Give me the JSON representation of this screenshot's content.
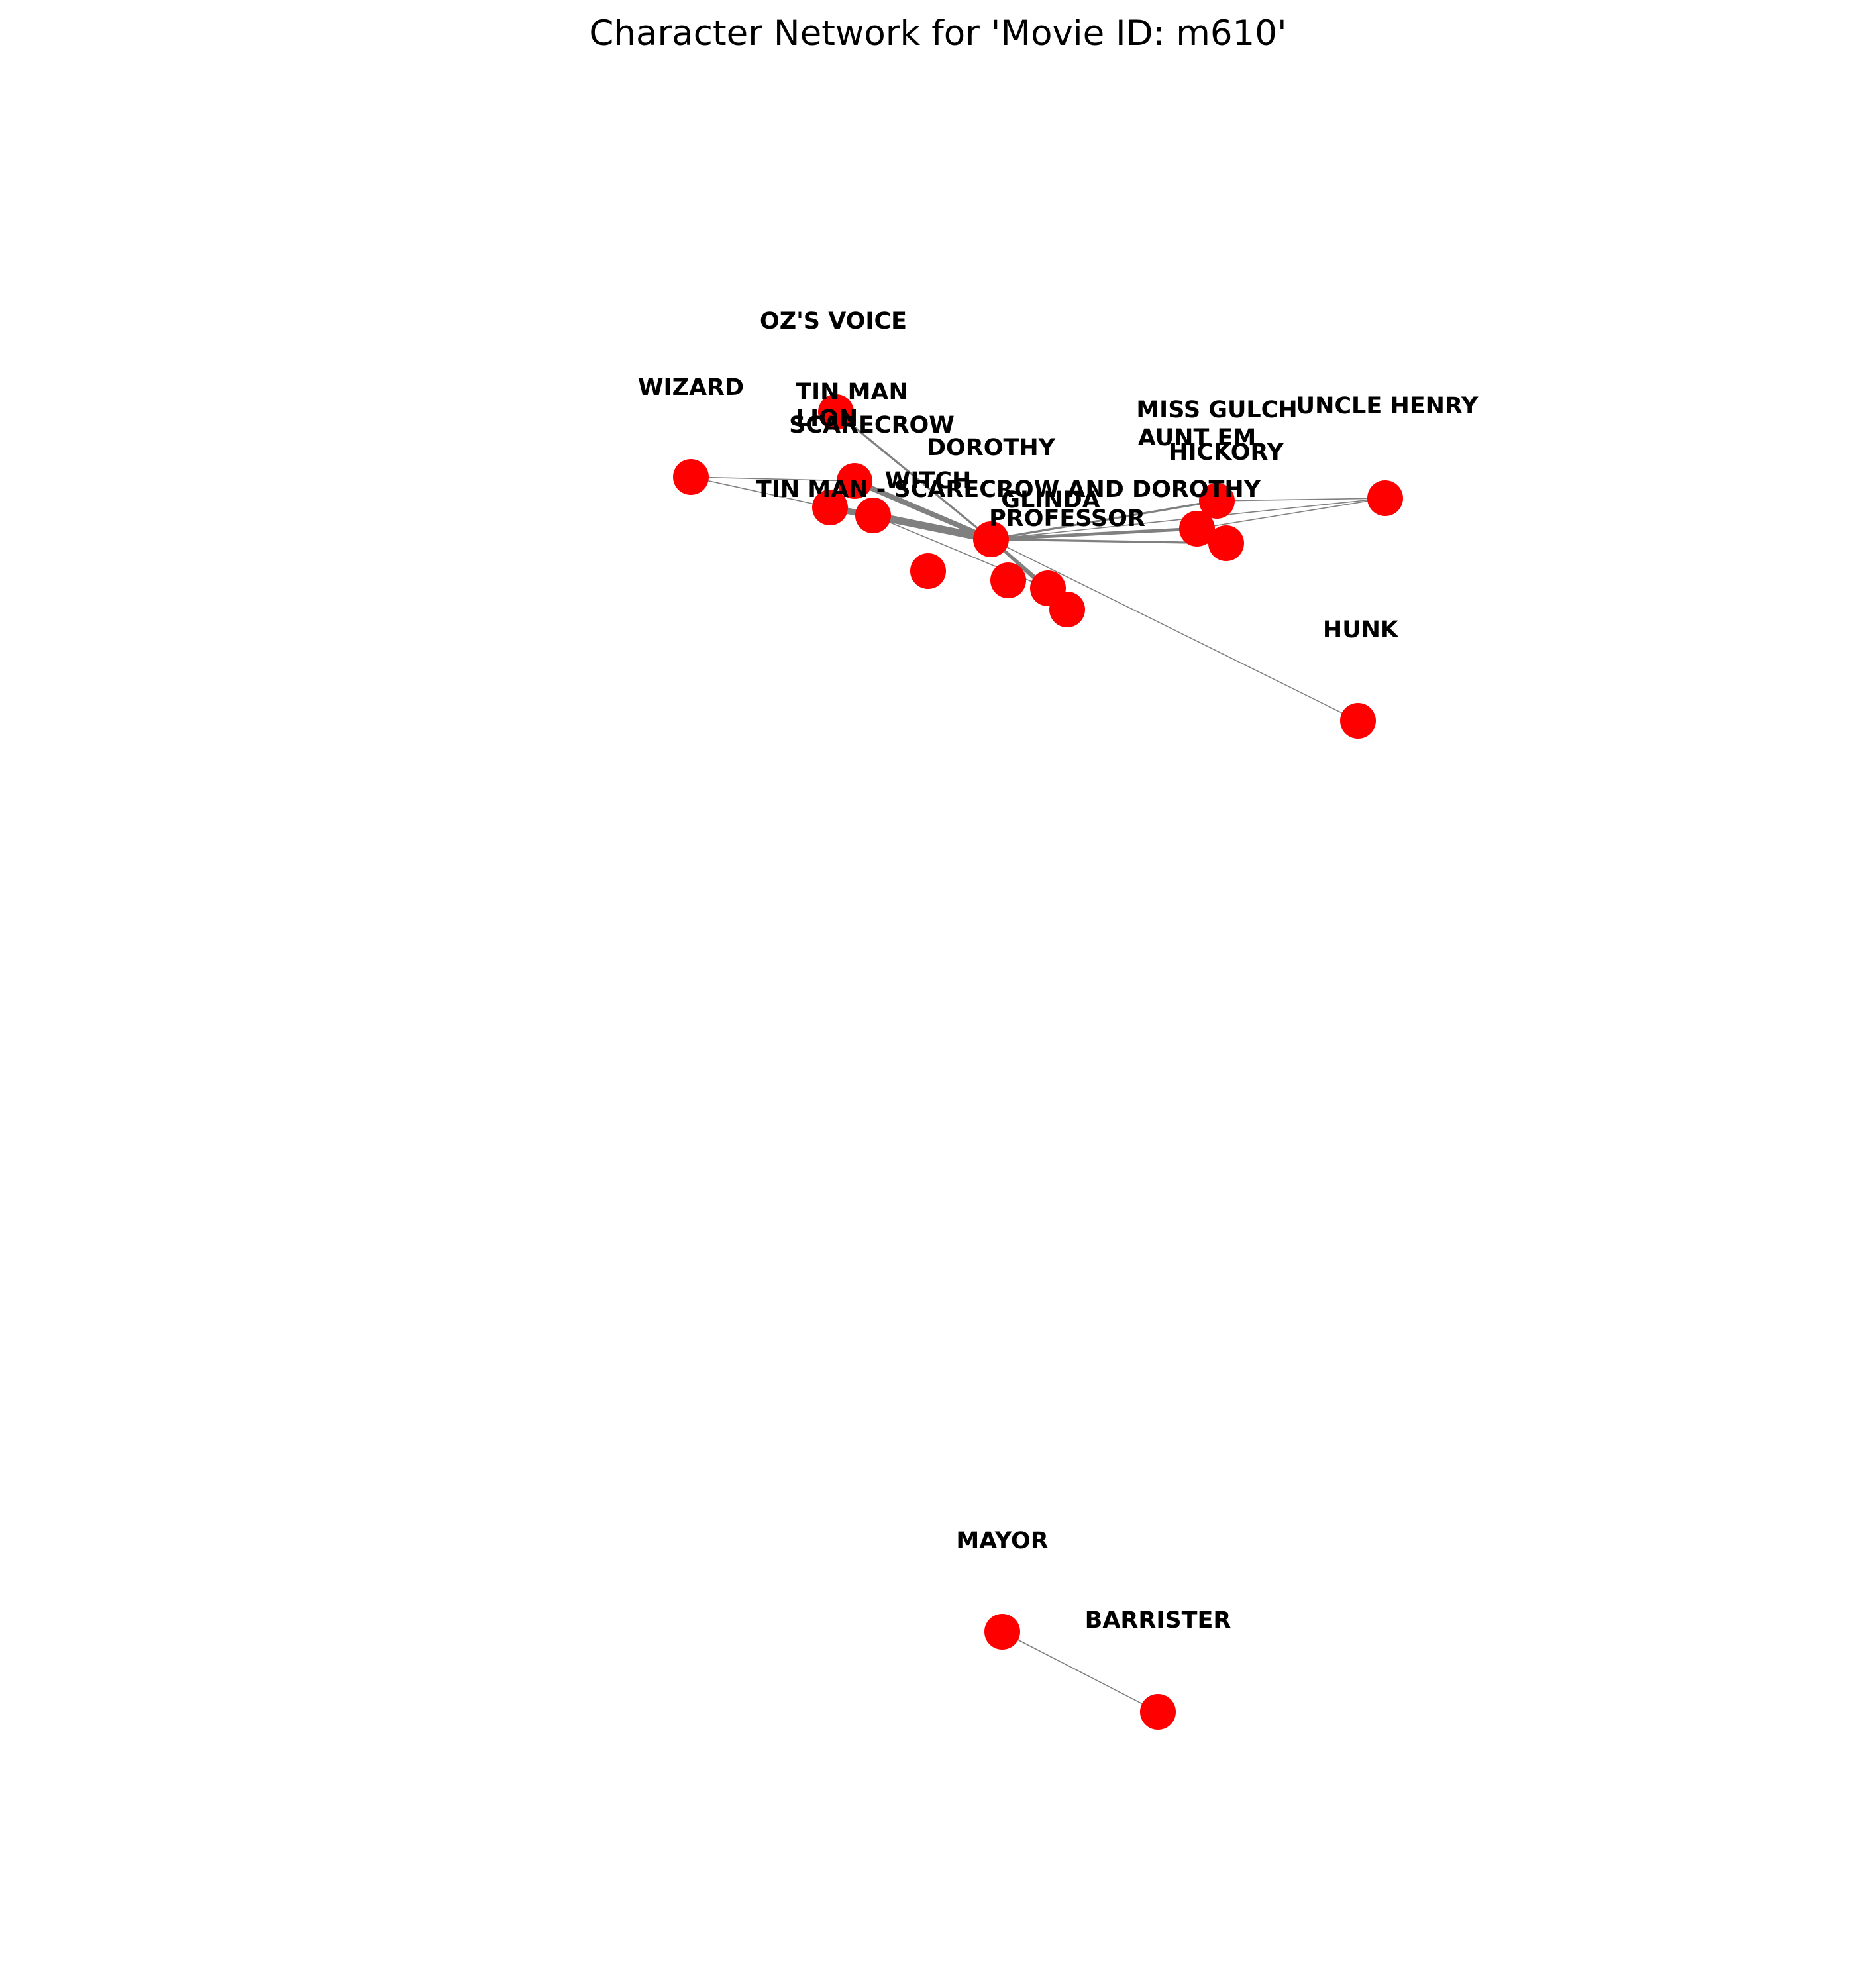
{
  "title": "Character Network for 'Movie ID: m610'",
  "colors": {
    "node": "#ff0000",
    "edge": "#808080",
    "label": "#000000"
  },
  "nodes": [
    {
      "id": "lion",
      "label": "LION"
    },
    {
      "id": "tin_man",
      "label": "TIN MAN"
    },
    {
      "id": "wizard",
      "label": "WIZARD"
    },
    {
      "id": "oz_voice",
      "label": "OZ'S VOICE"
    },
    {
      "id": "scarecrow",
      "label": "SCARECROW"
    },
    {
      "id": "tin_man_scarecrow_dorothy",
      "label": "TIN MAN - SCARECROW AND DOROTHY"
    },
    {
      "id": "witch",
      "label": "WITCH"
    },
    {
      "id": "dorothy",
      "label": "DOROTHY"
    },
    {
      "id": "glinda",
      "label": "GLINDA"
    },
    {
      "id": "professor",
      "label": "PROFESSOR"
    },
    {
      "id": "miss_gulch",
      "label": "MISS GULCH"
    },
    {
      "id": "aunt_em",
      "label": "AUNT EM"
    },
    {
      "id": "hickory",
      "label": "HICKORY"
    },
    {
      "id": "uncle_henry",
      "label": "UNCLE HENRY"
    },
    {
      "id": "hunk",
      "label": "HUNK"
    },
    {
      "id": "mayor",
      "label": "MAYOR"
    },
    {
      "id": "barrister",
      "label": "BARRISTER"
    }
  ],
  "edges": [
    {
      "source": "dorothy",
      "target": "scarecrow",
      "weight": 6
    },
    {
      "source": "dorothy",
      "target": "tin_man",
      "weight": 5
    },
    {
      "source": "dorothy",
      "target": "witch",
      "weight": 7
    },
    {
      "source": "dorothy",
      "target": "lion",
      "weight": 2
    },
    {
      "source": "dorothy",
      "target": "oz_voice",
      "weight": 1
    },
    {
      "source": "dorothy",
      "target": "glinda",
      "weight": 3
    },
    {
      "source": "dorothy",
      "target": "professor",
      "weight": 2
    },
    {
      "source": "dorothy",
      "target": "tin_man_scarecrow_dorothy",
      "weight": 2
    },
    {
      "source": "dorothy",
      "target": "aunt_em",
      "weight": 3
    },
    {
      "source": "dorothy",
      "target": "miss_gulch",
      "weight": 2
    },
    {
      "source": "dorothy",
      "target": "hickory",
      "weight": 2
    },
    {
      "source": "dorothy",
      "target": "uncle_henry",
      "weight": 1
    },
    {
      "source": "dorothy",
      "target": "hunk",
      "weight": 1
    },
    {
      "source": "wizard",
      "target": "tin_man",
      "weight": 1
    },
    {
      "source": "wizard",
      "target": "scarecrow",
      "weight": 1
    },
    {
      "source": "oz_voice",
      "target": "lion",
      "weight": 1
    },
    {
      "source": "tin_man_scarecrow_dorothy",
      "target": "glinda",
      "weight": 1
    },
    {
      "source": "miss_gulch",
      "target": "uncle_henry",
      "weight": 1
    },
    {
      "source": "aunt_em",
      "target": "uncle_henry",
      "weight": 1
    },
    {
      "source": "mayor",
      "target": "barrister",
      "weight": 1
    }
  ]
}
